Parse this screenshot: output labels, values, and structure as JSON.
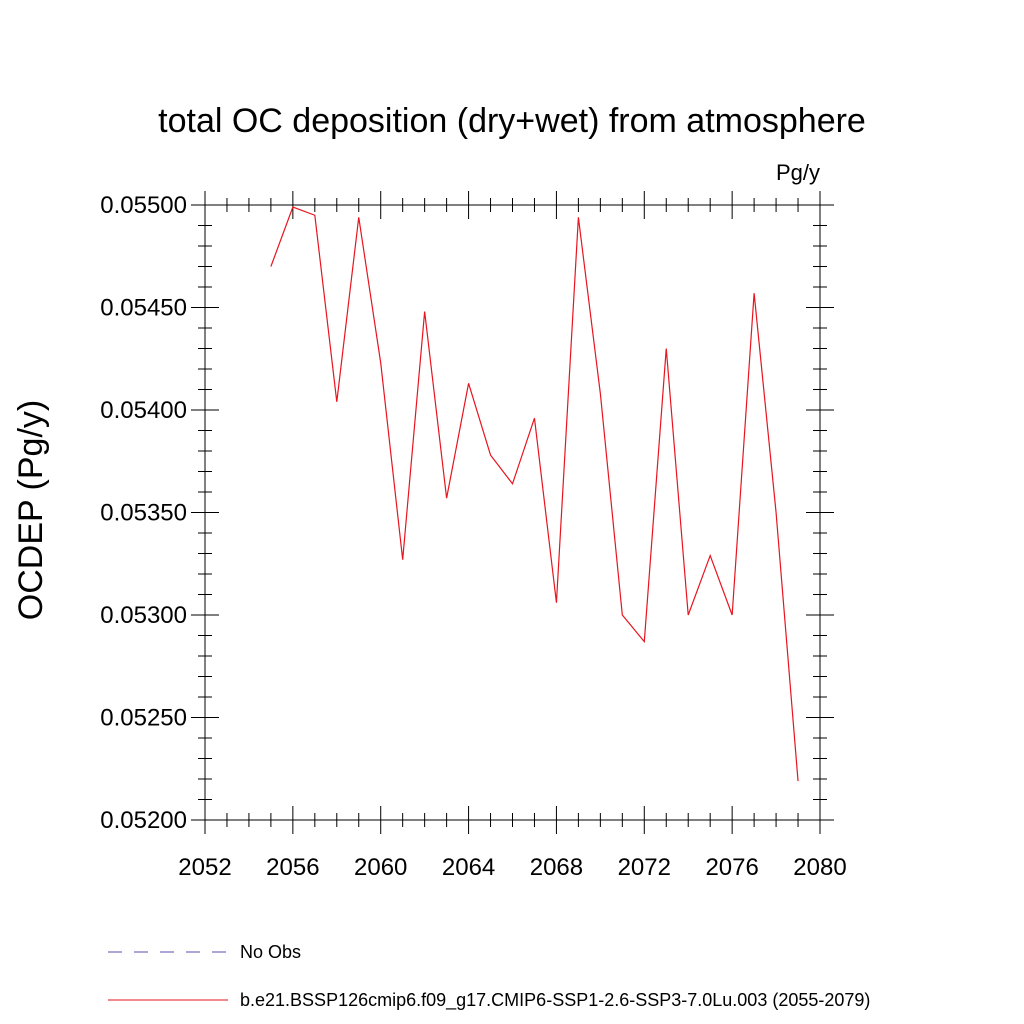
{
  "chart_data": {
    "type": "line",
    "title": "total OC deposition (dry+wet) from atmosphere",
    "units_label": "Pg/y",
    "ylabel": "OCDEP  (Pg/y)",
    "xlabel": "",
    "xlim": [
      2052,
      2080
    ],
    "ylim": [
      0.052,
      0.055
    ],
    "x_ticks": [
      2052,
      2056,
      2060,
      2064,
      2068,
      2072,
      2076,
      2080
    ],
    "x_tick_labels": [
      "2052",
      "2056",
      "2060",
      "2064",
      "2068",
      "2072",
      "2076",
      "2080"
    ],
    "y_ticks": [
      0.052,
      0.0525,
      0.053,
      0.0535,
      0.054,
      0.0545,
      0.055
    ],
    "y_tick_labels": [
      "0.05200",
      "0.05250",
      "0.05300",
      "0.05350",
      "0.05400",
      "0.05450",
      "0.05500"
    ],
    "grid": false,
    "legend_position": "bottom",
    "series": [
      {
        "name": "No Obs",
        "color": "#5a4fa8",
        "style": "dashed",
        "x": [],
        "values": []
      },
      {
        "name": "b.e21.BSSP126cmip6.f09_g17.CMIP6-SSP1-2.6-SSP3-7.0Lu.003 (2055-2079)",
        "color": "#e8141e",
        "style": "solid",
        "x": [
          2055,
          2056,
          2057,
          2058,
          2059,
          2060,
          2061,
          2062,
          2063,
          2064,
          2065,
          2066,
          2067,
          2068,
          2069,
          2070,
          2071,
          2072,
          2073,
          2074,
          2075,
          2076,
          2077,
          2078,
          2079
        ],
        "values": [
          0.0547,
          0.05499,
          0.05495,
          0.05404,
          0.05494,
          0.05423,
          0.05327,
          0.05448,
          0.05357,
          0.05413,
          0.05378,
          0.05364,
          0.05396,
          0.05306,
          0.05494,
          0.05408,
          0.053,
          0.05287,
          0.0543,
          0.053,
          0.05329,
          0.053,
          0.05457,
          0.0535,
          0.05219
        ]
      }
    ]
  }
}
